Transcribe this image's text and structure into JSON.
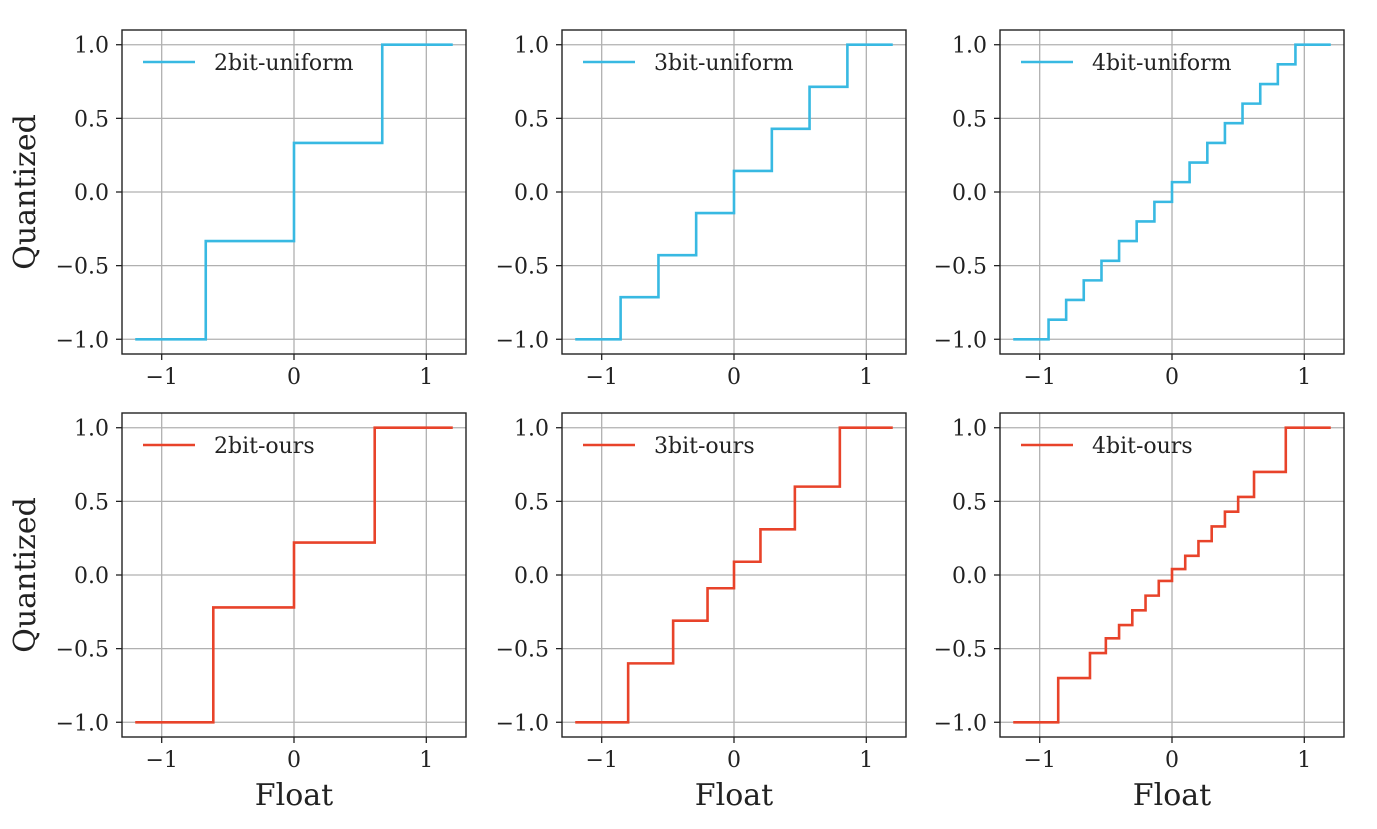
{
  "figure": {
    "ylabel": "Quantized",
    "xlabel": "Float"
  },
  "colors": {
    "uniform": "#38b9e2",
    "ours": "#e8432a"
  },
  "chart_data": [
    {
      "type": "line",
      "step": "post",
      "title": "",
      "legend": "2bit-uniform",
      "color": "#38b9e2",
      "xlim": [
        -1.3,
        1.3
      ],
      "ylim": [
        -1.1,
        1.1
      ],
      "xticks": [
        -1,
        0,
        1
      ],
      "xtick_labels": [
        "−1",
        "0",
        "1"
      ],
      "yticks": [
        -1.0,
        -0.5,
        0.0,
        0.5,
        1.0
      ],
      "ytick_labels": [
        "−1.0",
        "−0.5",
        "0.0",
        "0.5",
        "1.0"
      ],
      "ylabel": "Quantized",
      "xlabel": "",
      "x_start": -1.2,
      "x_end": 1.2,
      "breakpoints": [
        -0.667,
        0,
        0.667
      ],
      "levels": [
        -1.0,
        -0.333,
        0.333,
        1.0
      ]
    },
    {
      "type": "line",
      "step": "post",
      "title": "",
      "legend": "3bit-uniform",
      "color": "#38b9e2",
      "xlim": [
        -1.3,
        1.3
      ],
      "ylim": [
        -1.1,
        1.1
      ],
      "xticks": [
        -1,
        0,
        1
      ],
      "xtick_labels": [
        "−1",
        "0",
        "1"
      ],
      "yticks": [
        -1.0,
        -0.5,
        0.0,
        0.5,
        1.0
      ],
      "ytick_labels": [
        "−1.0",
        "−0.5",
        "0.0",
        "0.5",
        "1.0"
      ],
      "ylabel": "",
      "xlabel": "",
      "x_start": -1.2,
      "x_end": 1.2,
      "breakpoints": [
        -0.857,
        -0.571,
        -0.286,
        0,
        0.286,
        0.571,
        0.857
      ],
      "levels": [
        -1.0,
        -0.714,
        -0.429,
        -0.143,
        0.143,
        0.429,
        0.714,
        1.0
      ]
    },
    {
      "type": "line",
      "step": "post",
      "title": "",
      "legend": "4bit-uniform",
      "color": "#38b9e2",
      "xlim": [
        -1.3,
        1.3
      ],
      "ylim": [
        -1.1,
        1.1
      ],
      "xticks": [
        -1,
        0,
        1
      ],
      "xtick_labels": [
        "−1",
        "0",
        "1"
      ],
      "yticks": [
        -1.0,
        -0.5,
        0.0,
        0.5,
        1.0
      ],
      "ytick_labels": [
        "−1.0",
        "−0.5",
        "0.0",
        "0.5",
        "1.0"
      ],
      "ylabel": "",
      "xlabel": "",
      "x_start": -1.2,
      "x_end": 1.2,
      "breakpoints": [
        -0.933,
        -0.8,
        -0.667,
        -0.533,
        -0.4,
        -0.267,
        -0.133,
        0,
        0.133,
        0.267,
        0.4,
        0.533,
        0.667,
        0.8,
        0.933
      ],
      "levels": [
        -1.0,
        -0.867,
        -0.733,
        -0.6,
        -0.467,
        -0.333,
        -0.2,
        -0.067,
        0.067,
        0.2,
        0.333,
        0.467,
        0.6,
        0.733,
        0.867,
        1.0
      ]
    },
    {
      "type": "line",
      "step": "post",
      "title": "",
      "legend": "2bit-ours",
      "color": "#e8432a",
      "xlim": [
        -1.3,
        1.3
      ],
      "ylim": [
        -1.1,
        1.1
      ],
      "xticks": [
        -1,
        0,
        1
      ],
      "xtick_labels": [
        "−1",
        "0",
        "1"
      ],
      "yticks": [
        -1.0,
        -0.5,
        0.0,
        0.5,
        1.0
      ],
      "ytick_labels": [
        "−1.0",
        "−0.5",
        "0.0",
        "0.5",
        "1.0"
      ],
      "ylabel": "Quantized",
      "xlabel": "Float",
      "x_start": -1.2,
      "x_end": 1.2,
      "breakpoints": [
        -0.61,
        0,
        0.61
      ],
      "levels": [
        -1.0,
        -0.22,
        0.22,
        1.0
      ]
    },
    {
      "type": "line",
      "step": "post",
      "title": "",
      "legend": "3bit-ours",
      "color": "#e8432a",
      "xlim": [
        -1.3,
        1.3
      ],
      "ylim": [
        -1.1,
        1.1
      ],
      "xticks": [
        -1,
        0,
        1
      ],
      "xtick_labels": [
        "−1",
        "0",
        "1"
      ],
      "yticks": [
        -1.0,
        -0.5,
        0.0,
        0.5,
        1.0
      ],
      "ytick_labels": [
        "−1.0",
        "−0.5",
        "0.0",
        "0.5",
        "1.0"
      ],
      "ylabel": "",
      "xlabel": "Float",
      "x_start": -1.2,
      "x_end": 1.2,
      "breakpoints": [
        -0.8,
        -0.46,
        -0.2,
        0,
        0.2,
        0.46,
        0.8
      ],
      "levels": [
        -1.0,
        -0.6,
        -0.31,
        -0.09,
        0.09,
        0.31,
        0.6,
        1.0
      ]
    },
    {
      "type": "line",
      "step": "post",
      "title": "",
      "legend": "4bit-ours",
      "color": "#e8432a",
      "xlim": [
        -1.3,
        1.3
      ],
      "ylim": [
        -1.1,
        1.1
      ],
      "xticks": [
        -1,
        0,
        1
      ],
      "xtick_labels": [
        "−1",
        "0",
        "1"
      ],
      "yticks": [
        -1.0,
        -0.5,
        0.0,
        0.5,
        1.0
      ],
      "ytick_labels": [
        "−1.0",
        "−0.5",
        "0.0",
        "0.5",
        "1.0"
      ],
      "ylabel": "",
      "xlabel": "Float",
      "x_start": -1.2,
      "x_end": 1.2,
      "breakpoints": [
        -0.86,
        -0.62,
        -0.5,
        -0.4,
        -0.3,
        -0.2,
        -0.1,
        0,
        0.1,
        0.2,
        0.3,
        0.4,
        0.5,
        0.62,
        0.86
      ],
      "levels": [
        -1.0,
        -0.7,
        -0.53,
        -0.43,
        -0.34,
        -0.24,
        -0.14,
        -0.04,
        0.04,
        0.13,
        0.23,
        0.33,
        0.43,
        0.53,
        0.7,
        1.0
      ]
    }
  ]
}
